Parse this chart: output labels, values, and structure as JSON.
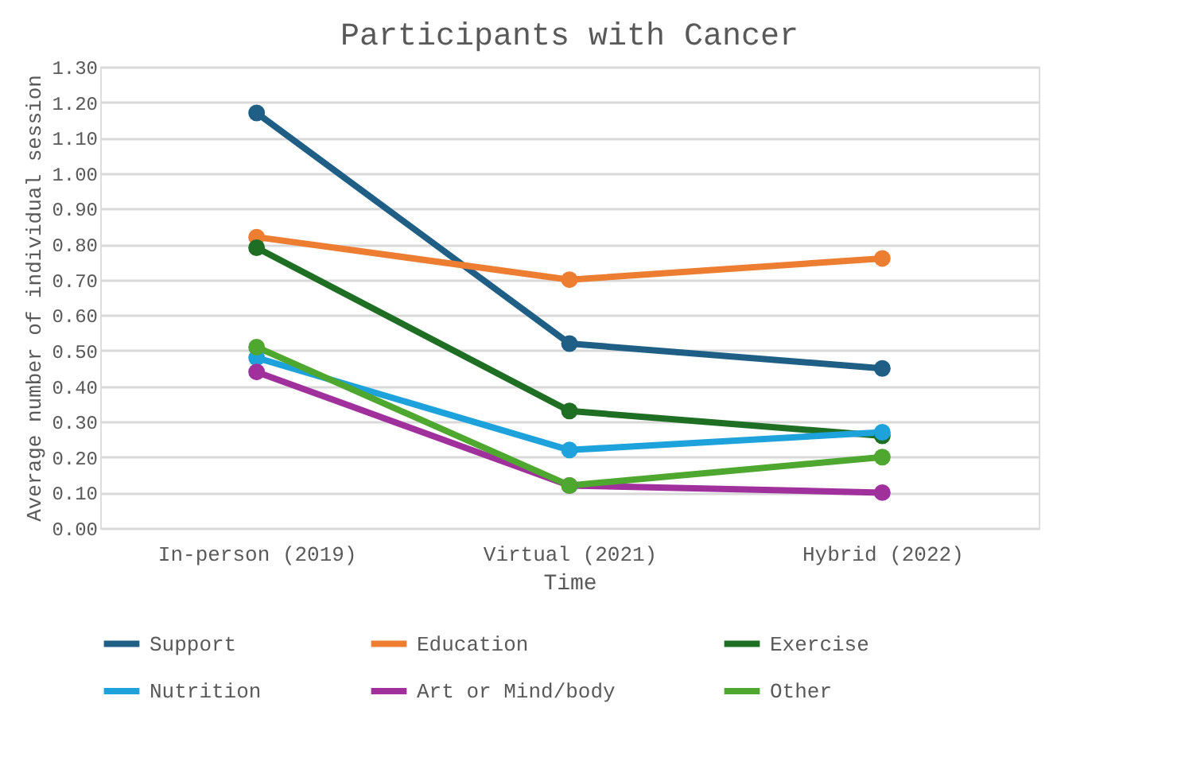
{
  "chart_data": {
    "type": "line",
    "title": "Participants with Cancer",
    "xlabel": "Time",
    "ylabel": "Average number of individual session",
    "categories": [
      "In-person (2019)",
      "Virtual (2021)",
      "Hybrid (2022)"
    ],
    "series": [
      {
        "name": "Support",
        "color": "#1f5f85",
        "values": [
          1.17,
          0.52,
          0.45
        ]
      },
      {
        "name": "Education",
        "color": "#ed7d31",
        "values": [
          0.82,
          0.7,
          0.76
        ]
      },
      {
        "name": "Exercise",
        "color": "#1e6e23",
        "values": [
          0.79,
          0.33,
          0.26
        ]
      },
      {
        "name": "Nutrition",
        "color": "#1ea2dc",
        "values": [
          0.48,
          0.22,
          0.27
        ]
      },
      {
        "name": "Art or Mind/body",
        "color": "#a0309c",
        "values": [
          0.44,
          0.12,
          0.1
        ]
      },
      {
        "name": "Other",
        "color": "#4ea72e",
        "values": [
          0.51,
          0.12,
          0.2
        ]
      }
    ],
    "ylim": [
      0,
      1.3
    ],
    "yticks": [
      {
        "value": 0,
        "label": "0.00"
      },
      {
        "value": 0.1,
        "label": "0.10"
      },
      {
        "value": 0.2,
        "label": "0.20"
      },
      {
        "value": 0.3,
        "label": "0.30"
      },
      {
        "value": 0.4,
        "label": "0.40"
      },
      {
        "value": 0.5,
        "label": "0.50"
      },
      {
        "value": 0.6,
        "label": "0.60"
      },
      {
        "value": 0.7,
        "label": "0.70"
      },
      {
        "value": 0.8,
        "label": "0.80"
      },
      {
        "value": 0.9,
        "label": "0.90"
      },
      {
        "value": 1.0,
        "label": "1.00"
      },
      {
        "value": 1.1,
        "label": "1.10"
      },
      {
        "value": 1.2,
        "label": "1.20"
      },
      {
        "value": 1.3,
        "label": "1.30"
      }
    ],
    "grid": "y",
    "legend": "bottom",
    "marker": "circle",
    "line_style": "solid"
  }
}
